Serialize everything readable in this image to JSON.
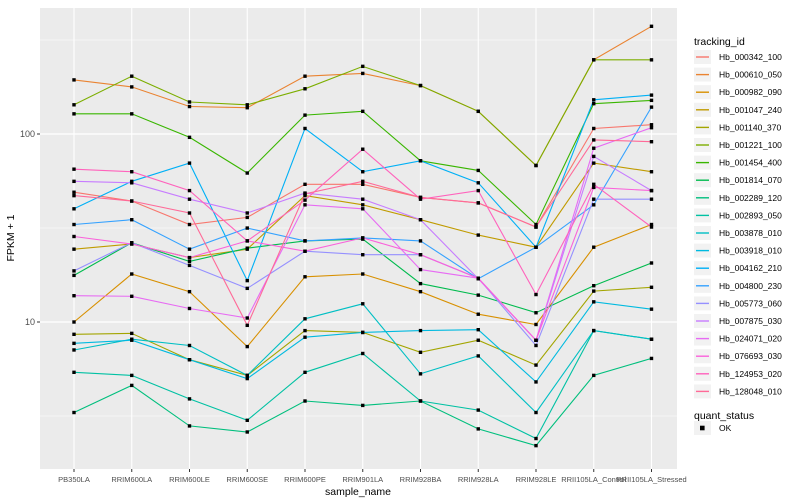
{
  "chart_data": {
    "type": "line",
    "xlabel": "sample_name",
    "ylabel": "FPKM + 1",
    "yscale": "log10",
    "ylim": [
      2,
      420
    ],
    "yticks": [
      {
        "value": 10,
        "label": "10"
      },
      {
        "value": 100,
        "label": "100"
      }
    ],
    "yminor": [
      3.162,
      31.62,
      316.2
    ],
    "grid": true,
    "panel_bg": "#EBEBEB",
    "grid_color": "#FFFFFF",
    "point_shape": "square",
    "point_color": "#000000",
    "categories": [
      "PB350LA",
      "RRIM600LA",
      "RRIM600LE",
      "RRIM600SE",
      "RRIM600PE",
      "RRIM901LA",
      "RRIM928BA",
      "RRIM928LA",
      "RRIM928LE",
      "RRII105LA_Control",
      "RRII105LA_Stressed"
    ],
    "legend": {
      "position": "right",
      "tracking_title": "tracking_id",
      "quant_title": "quant_status",
      "quant_value": "OK",
      "quant_marker": "black-square",
      "key_bg": "#F2F2F2"
    },
    "series": [
      {
        "name": "Hb_000342_100",
        "color": "#F8766D",
        "values": [
          49,
          44,
          33,
          36,
          54,
          54,
          46,
          43,
          32,
          107,
          112
        ]
      },
      {
        "name": "Hb_000610_050",
        "color": "#EA8331",
        "values": [
          194,
          178,
          140,
          138,
          203,
          210,
          181,
          132,
          68,
          248,
          374
        ]
      },
      {
        "name": "Hb_000982_090",
        "color": "#D89000",
        "values": [
          10,
          18,
          14.5,
          7.4,
          17.4,
          18,
          14.5,
          11,
          9.7,
          25,
          33
        ]
      },
      {
        "name": "Hb_001047_240",
        "color": "#C09B00",
        "values": [
          24.4,
          26,
          22,
          24.4,
          47,
          42,
          35,
          29,
          25,
          70,
          63
        ]
      },
      {
        "name": "Hb_001140_370",
        "color": "#A3A500",
        "values": [
          8.6,
          8.7,
          6.3,
          5.2,
          9,
          8.8,
          6.9,
          8,
          5.9,
          14.6,
          15.3
        ]
      },
      {
        "name": "Hb_001221_100",
        "color": "#7CAE00",
        "values": [
          143,
          203,
          148,
          143,
          174,
          229,
          181,
          132,
          68,
          248,
          248
        ]
      },
      {
        "name": "Hb_001454_400",
        "color": "#39B600",
        "values": [
          128,
          128,
          96,
          62,
          126,
          132,
          72,
          64,
          33,
          145,
          151
        ]
      },
      {
        "name": "Hb_001814_070",
        "color": "#00BB4E",
        "values": [
          17.7,
          26.4,
          21,
          24.7,
          27,
          27.6,
          16,
          13.9,
          11.2,
          15.6,
          20.6
        ]
      },
      {
        "name": "Hb_002289_120",
        "color": "#00BF7D",
        "values": [
          3.3,
          4.6,
          2.8,
          2.6,
          3.8,
          3.6,
          3.8,
          2.7,
          2.2,
          5.2,
          6.4
        ]
      },
      {
        "name": "Hb_002893_050",
        "color": "#00C1A3",
        "values": [
          5.4,
          5.2,
          3.9,
          3,
          5.4,
          6.8,
          3.8,
          3.4,
          2.4,
          9,
          8.1
        ]
      },
      {
        "name": "Hb_003878_010",
        "color": "#00BFC4",
        "values": [
          7.1,
          8.1,
          7.5,
          5.2,
          10.4,
          12.5,
          5.3,
          6.6,
          3.3,
          9,
          8.1
        ]
      },
      {
        "name": "Hb_003918_010",
        "color": "#00BAE0",
        "values": [
          7.7,
          8,
          6.3,
          5,
          8.3,
          8.8,
          9,
          9.1,
          4.8,
          12.8,
          11.7
        ]
      },
      {
        "name": "Hb_004162_210",
        "color": "#00B0F6",
        "values": [
          40,
          56,
          70,
          16.6,
          107,
          63,
          72,
          55,
          25,
          152,
          161
        ]
      },
      {
        "name": "Hb_004800_230",
        "color": "#35A2FF",
        "values": [
          33,
          35,
          24.4,
          31.6,
          27,
          28,
          27,
          17,
          25,
          42,
          139
        ]
      },
      {
        "name": "Hb_005773_060",
        "color": "#9590FF",
        "values": [
          18.7,
          26.4,
          20,
          15.1,
          23.8,
          22.8,
          22.8,
          17.1,
          7.5,
          45,
          45
        ]
      },
      {
        "name": "Hb_007875_030",
        "color": "#C77CFF",
        "values": [
          56,
          55,
          45,
          38,
          48.5,
          45,
          35,
          17,
          8,
          76,
          50
        ]
      },
      {
        "name": "Hb_024071_020",
        "color": "#E76BF3",
        "values": [
          13.8,
          13.7,
          11.8,
          10.5,
          42,
          40,
          19,
          17.1,
          8,
          84,
          108
        ]
      },
      {
        "name": "Hb_076693_030",
        "color": "#FA62DB",
        "values": [
          28.5,
          26,
          22,
          27,
          23.8,
          28,
          22.8,
          17.1,
          8,
          52,
          50
        ]
      },
      {
        "name": "Hb_124953_020",
        "color": "#FF62BC",
        "values": [
          65,
          63,
          50,
          27,
          44.5,
          83,
          45,
          50,
          14,
          54,
          32
        ]
      },
      {
        "name": "Hb_128048_010",
        "color": "#FF6A98",
        "values": [
          47,
          44,
          38,
          9.6,
          48,
          56,
          46,
          43,
          32,
          93,
          91
        ]
      }
    ]
  }
}
